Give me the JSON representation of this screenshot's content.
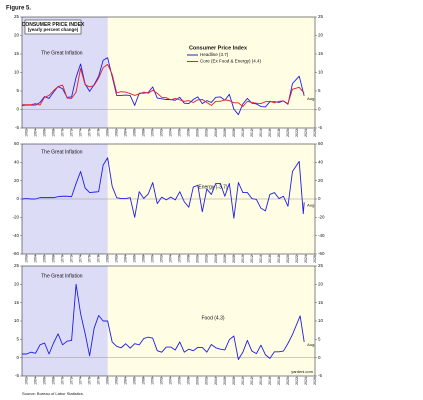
{
  "figure_label": "Figure 5.",
  "source": "Source: Bureau of Labor Statistics.",
  "credit": "yardeni.com",
  "chart_data": [
    {
      "type": "line",
      "title": "CONSUMER PRICE INDEX",
      "subtitle": "(yearly percent change)",
      "legend_title": "Consumer Price Index",
      "legend": true,
      "shade": {
        "x": [
          1961,
          1980
        ],
        "label": "The Great Inflation"
      },
      "end_label": "Aug",
      "x": [
        1961,
        1962,
        1963,
        1964,
        1965,
        1966,
        1967,
        1968,
        1969,
        1970,
        1971,
        1972,
        1973,
        1974,
        1975,
        1976,
        1977,
        1978,
        1979,
        1980,
        1981,
        1982,
        1983,
        1984,
        1985,
        1986,
        1987,
        1988,
        1989,
        1990,
        1991,
        1992,
        1993,
        1994,
        1995,
        1996,
        1997,
        1998,
        1999,
        2000,
        2001,
        2002,
        2003,
        2004,
        2005,
        2006,
        2007,
        2008,
        2009,
        2010,
        2011,
        2012,
        2013,
        2014,
        2015,
        2016,
        2017,
        2018,
        2019,
        2020,
        2021,
        2022.5,
        2023.6
      ],
      "series": [
        {
          "name": "Headline (3.7)",
          "color": "#1f1fe8",
          "values": [
            1.1,
            1.2,
            1.2,
            1.2,
            1.9,
            3.5,
            3.0,
            4.7,
            6.2,
            5.6,
            3.3,
            3.4,
            8.7,
            12.3,
            6.9,
            4.9,
            6.7,
            9.0,
            13.3,
            14.0,
            8.9,
            3.8,
            3.8,
            3.9,
            3.8,
            1.1,
            4.4,
            4.4,
            4.6,
            6.1,
            3.1,
            2.9,
            2.7,
            2.7,
            2.5,
            3.3,
            1.7,
            1.6,
            2.7,
            3.4,
            1.6,
            2.4,
            1.9,
            3.3,
            3.4,
            2.5,
            4.1,
            0.1,
            -1.4,
            1.5,
            3.0,
            1.7,
            1.5,
            0.8,
            0.7,
            2.1,
            2.1,
            1.9,
            2.3,
            1.4,
            7.0,
            9.0,
            3.7
          ]
        },
        {
          "name": "Core (Ex Food & Energy) (4.4)",
          "color": "#e0202a",
          "values": [
            1.3,
            1.3,
            1.3,
            1.6,
            1.2,
            3.3,
            3.8,
            5.1,
            6.2,
            6.6,
            3.1,
            3.0,
            4.7,
            11.1,
            6.7,
            6.1,
            6.5,
            8.5,
            11.3,
            12.2,
            9.5,
            4.5,
            4.8,
            4.7,
            4.3,
            3.8,
            4.2,
            4.7,
            4.4,
            5.2,
            4.4,
            3.3,
            3.2,
            2.6,
            3.0,
            2.6,
            2.2,
            2.4,
            1.9,
            2.6,
            2.7,
            1.9,
            1.1,
            2.2,
            2.2,
            2.6,
            2.4,
            1.8,
            1.8,
            0.8,
            2.2,
            1.9,
            1.7,
            1.6,
            2.1,
            2.2,
            1.8,
            2.2,
            2.3,
            1.6,
            5.5,
            6.0,
            4.4
          ]
        }
      ],
      "xlim": [
        1961,
        2026
      ],
      "xticks": [
        1962,
        1964,
        1966,
        1968,
        1970,
        1972,
        1974,
        1976,
        1978,
        1980,
        1982,
        1984,
        1986,
        1988,
        1990,
        1992,
        1994,
        1996,
        1998,
        2000,
        2002,
        2004,
        2006,
        2008,
        2010,
        2012,
        2014,
        2016,
        2018,
        2020,
        2022,
        2024,
        2026
      ],
      "ylim": [
        -5,
        25
      ],
      "yticks": [
        -5,
        0,
        5,
        10,
        15,
        20,
        25
      ]
    },
    {
      "type": "line",
      "shade": {
        "x": [
          1961,
          1980
        ],
        "label": "The Great Inflation"
      },
      "end_label": "Aug",
      "x": [
        1961,
        1962,
        1963,
        1964,
        1965,
        1966,
        1967,
        1968,
        1969,
        1970,
        1971,
        1972,
        1973,
        1974,
        1975,
        1976,
        1977,
        1978,
        1979,
        1980,
        1981,
        1982,
        1983,
        1984,
        1985,
        1986,
        1987,
        1988,
        1989,
        1990,
        1991,
        1992,
        1993,
        1994,
        1995,
        1996,
        1997,
        1998,
        1999,
        2000,
        2001,
        2002,
        2003,
        2004,
        2005,
        2006,
        2007,
        2008,
        2009,
        2010,
        2011,
        2012,
        2013,
        2014,
        2015,
        2016,
        2017,
        2018,
        2019,
        2020,
        2021,
        2022.5,
        2023.4,
        2023.6
      ],
      "series": [
        {
          "name": "Energy (-3.7)",
          "color": "#1f1fe8",
          "values": [
            0,
            0.5,
            0,
            0,
            1.5,
            1.5,
            1.5,
            1.5,
            2.5,
            3,
            3,
            2.5,
            17,
            30,
            12,
            7,
            7.5,
            8,
            37,
            45,
            14,
            1.5,
            0.5,
            0.5,
            1.5,
            -20,
            8,
            0.5,
            5.5,
            18,
            -5,
            2,
            -1,
            2,
            -1,
            8,
            -3,
            -9,
            13,
            15,
            -14,
            11,
            5,
            17,
            17,
            3,
            17,
            -21,
            18,
            7,
            7,
            0.5,
            -0.5,
            -10,
            -13,
            5,
            7,
            0.5,
            3,
            -8,
            30,
            41,
            -16,
            -3.7
          ]
        }
      ],
      "xlim": [
        1961,
        2026
      ],
      "xticks": [
        1962,
        1964,
        1966,
        1968,
        1970,
        1972,
        1974,
        1976,
        1978,
        1980,
        1982,
        1984,
        1986,
        1988,
        1990,
        1992,
        1994,
        1996,
        1998,
        2000,
        2002,
        2004,
        2006,
        2008,
        2010,
        2012,
        2014,
        2016,
        2018,
        2020,
        2022,
        2024,
        2026
      ],
      "ylim": [
        -60,
        60
      ],
      "yticks": [
        -60,
        -40,
        -20,
        0,
        20,
        40,
        60
      ]
    },
    {
      "type": "line",
      "shade": {
        "x": [
          1961,
          1980
        ],
        "label": "The Great Inflation"
      },
      "end_label": "Aug",
      "x": [
        1961,
        1962,
        1963,
        1964,
        1965,
        1966,
        1967,
        1968,
        1969,
        1970,
        1971,
        1972,
        1973,
        1974,
        1975,
        1976,
        1977,
        1978,
        1979,
        1980,
        1981,
        1982,
        1983,
        1984,
        1985,
        1986,
        1987,
        1988,
        1989,
        1990,
        1991,
        1992,
        1993,
        1994,
        1995,
        1996,
        1997,
        1998,
        1999,
        2000,
        2001,
        2002,
        2003,
        2004,
        2005,
        2006,
        2007,
        2008,
        2009,
        2010,
        2011,
        2012,
        2013,
        2014,
        2015,
        2016,
        2017,
        2018,
        2019,
        2020,
        2021,
        2022.7,
        2023.6
      ],
      "series": [
        {
          "name": "Food (4.3)",
          "color": "#1f1fe8",
          "values": [
            1,
            1,
            1.5,
            1.2,
            3.5,
            4,
            1,
            4,
            6.5,
            3.5,
            4.5,
            4.7,
            20,
            12,
            6.6,
            0.5,
            8,
            11.5,
            10,
            10,
            4.3,
            3.1,
            2.7,
            3.8,
            2.6,
            3.8,
            3.5,
            5.2,
            5.6,
            5.3,
            1.9,
            1.5,
            2.9,
            2.9,
            2.1,
            4.3,
            1.5,
            2.3,
            1.9,
            2.8,
            2.8,
            1.5,
            3.6,
            2.7,
            2.3,
            2.1,
            4.9,
            5.9,
            -0.5,
            1.5,
            4.7,
            1.8,
            1.1,
            3.4,
            0.8,
            -0.2,
            1.6,
            1.6,
            1.8,
            3.9,
            6.3,
            11.4,
            4.3
          ]
        }
      ],
      "xlim": [
        1961,
        2026
      ],
      "xticks": [
        1962,
        1964,
        1966,
        1968,
        1970,
        1972,
        1974,
        1976,
        1978,
        1980,
        1982,
        1984,
        1986,
        1988,
        1990,
        1992,
        1994,
        1996,
        1998,
        2000,
        2002,
        2004,
        2006,
        2008,
        2010,
        2012,
        2014,
        2016,
        2018,
        2020,
        2022,
        2024,
        2026
      ],
      "ylim": [
        -5,
        25
      ],
      "yticks": [
        -5,
        0,
        5,
        10,
        15,
        20,
        25
      ]
    }
  ]
}
